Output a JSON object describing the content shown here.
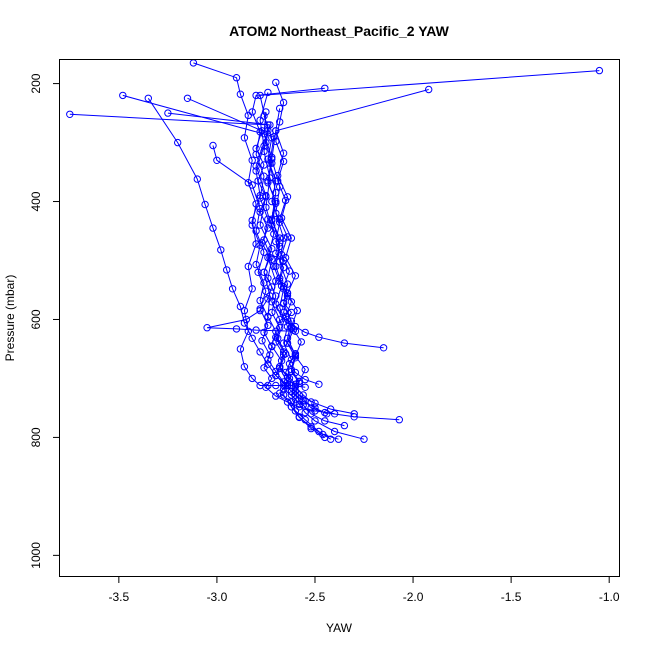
{
  "chart_data": {
    "type": "line",
    "title": "ATOM2 Northeast_Pacific_2 YAW",
    "xlabel": "YAW",
    "ylabel": "Pressure (mbar)",
    "xlim": [
      -3.8,
      -0.95
    ],
    "ylim": [
      1035,
      160
    ],
    "y_reversed": true,
    "x_ticks": [
      -3.5,
      -3.0,
      -2.5,
      -2.0,
      -1.5,
      -1.0
    ],
    "x_tick_labels": [
      "-3.5",
      "-3.0",
      "-2.5",
      "-2.0",
      "-1.5",
      "-1.0"
    ],
    "y_ticks": [
      200,
      400,
      600,
      800,
      1000
    ],
    "y_tick_labels": [
      "200",
      "400",
      "600",
      "800",
      "1000"
    ],
    "grid": false,
    "legend": "none",
    "marker": "open-circle",
    "color": "#0000ff",
    "series": [
      {
        "x": [
          -2.42,
          -2.48,
          -2.55,
          -2.6,
          -2.62,
          -2.68,
          -2.65,
          -2.7,
          -2.67,
          -2.72,
          -2.7,
          -2.74,
          -2.73,
          -2.76,
          -2.72,
          -2.78,
          -2.75,
          -2.8,
          -2.74,
          -2.78,
          -1.05
        ],
        "y": [
          803,
          790,
          770,
          755,
          740,
          725,
          712,
          695,
          670,
          645,
          620,
          595,
          560,
          520,
          480,
          440,
          390,
          340,
          280,
          220,
          178
        ]
      },
      {
        "x": [
          -2.45,
          -2.52,
          -2.58,
          -2.62,
          -2.6,
          -2.66,
          -2.63,
          -2.68,
          -2.66,
          -2.7,
          -2.68,
          -2.72,
          -2.7,
          -2.74,
          -2.71,
          -2.75,
          -2.73,
          -2.76,
          -2.74,
          -3.75
        ],
        "y": [
          800,
          785,
          765,
          748,
          735,
          718,
          700,
          680,
          655,
          630,
          600,
          570,
          535,
          495,
          455,
          410,
          360,
          315,
          270,
          252
        ]
      },
      {
        "x": [
          -2.25,
          -2.4,
          -2.5,
          -2.55,
          -2.58,
          -2.62,
          -2.6,
          -2.65,
          -2.62,
          -2.66,
          -2.64,
          -2.68,
          -2.66,
          -2.7,
          -2.68,
          -2.72,
          -2.7,
          -2.73,
          -2.71,
          -3.48
        ],
        "y": [
          803,
          790,
          772,
          758,
          744,
          728,
          710,
          690,
          668,
          640,
          612,
          580,
          548,
          510,
          470,
          430,
          385,
          335,
          290,
          220
        ]
      },
      {
        "x": [
          -2.07,
          -2.3,
          -2.45,
          -2.52,
          -2.55,
          -2.6,
          -2.58,
          -2.62,
          -2.6,
          -2.64,
          -2.62,
          -2.66,
          -2.64,
          -2.68,
          -2.66,
          -2.7,
          -2.68,
          -2.72,
          -2.7,
          -1.92
        ],
        "y": [
          770,
          765,
          758,
          750,
          738,
          722,
          705,
          685,
          660,
          632,
          603,
          573,
          540,
          502,
          462,
          420,
          375,
          328,
          280,
          210
        ]
      },
      {
        "x": [
          -2.15,
          -2.35,
          -2.48,
          -2.55,
          -2.6,
          -2.64,
          -2.62,
          -2.66,
          -2.64,
          -2.68,
          -2.66,
          -2.7,
          -2.68,
          -2.72,
          -2.7,
          -2.74,
          -2.72,
          -2.75,
          -2.73,
          -3.25
        ],
        "y": [
          648,
          640,
          630,
          622,
          612,
          600,
          588,
          572,
          555,
          535,
          512,
          488,
          462,
          432,
          400,
          368,
          335,
          300,
          270,
          250
        ]
      },
      {
        "x": [
          -2.6,
          -2.8,
          -2.9,
          -3.05,
          -2.85,
          -2.78,
          -2.74,
          -2.72,
          -2.76,
          -2.73,
          -2.77,
          -2.74,
          -2.78,
          -2.75,
          -2.79,
          -2.76,
          -2.8,
          -2.77,
          -3.15
        ],
        "y": [
          620,
          618,
          616,
          614,
          600,
          585,
          565,
          545,
          520,
          495,
          470,
          445,
          418,
          392,
          365,
          338,
          310,
          280,
          225
        ]
      },
      {
        "x": [
          -2.4,
          -2.5,
          -2.58,
          -2.64,
          -2.7,
          -2.75,
          -2.72,
          -2.76,
          -2.73,
          -2.77,
          -2.74,
          -2.78,
          -2.75,
          -2.79,
          -2.76,
          -2.8,
          -2.78,
          -2.82,
          -3.0,
          -3.02
        ],
        "y": [
          760,
          755,
          748,
          740,
          730,
          715,
          700,
          682,
          660,
          636,
          610,
          582,
          552,
          520,
          486,
          450,
          412,
          372,
          330,
          305
        ]
      },
      {
        "x": [
          -2.55,
          -2.62,
          -2.66,
          -2.7,
          -2.74,
          -2.78,
          -2.82,
          -2.86,
          -2.88,
          -2.84,
          -2.86,
          -2.82,
          -2.84,
          -2.8,
          -2.82,
          -2.78,
          -2.8,
          -2.76,
          -2.78,
          -2.74
        ],
        "y": [
          715,
          712,
          712,
          712,
          712,
          712,
          700,
          680,
          650,
          620,
          585,
          548,
          510,
          472,
          432,
          390,
          348,
          306,
          262,
          215
        ]
      },
      {
        "x": [
          -2.48,
          -2.55,
          -2.6,
          -2.63,
          -2.6,
          -2.64,
          -2.61,
          -2.65,
          -2.62,
          -2.66,
          -2.63,
          -2.67,
          -2.64,
          -2.68,
          -2.65,
          -2.69,
          -2.66,
          -2.7,
          -2.68,
          -2.66,
          -2.7
        ],
        "y": [
          710,
          702,
          690,
          675,
          658,
          640,
          618,
          595,
          570,
          545,
          518,
          490,
          460,
          430,
          398,
          365,
          332,
          298,
          265,
          232,
          198
        ]
      },
      {
        "x": [
          -2.35,
          -2.45,
          -2.52,
          -2.56,
          -2.6,
          -2.58,
          -2.62,
          -2.6,
          -2.64,
          -2.62,
          -2.66,
          -2.64,
          -2.68,
          -2.66,
          -2.7,
          -2.68,
          -2.72,
          -2.7,
          -2.74,
          -2.72,
          -2.76
        ],
        "y": [
          780,
          772,
          760,
          745,
          728,
          708,
          688,
          665,
          640,
          615,
          588,
          560,
          530,
          500,
          468,
          435,
          400,
          365,
          328,
          292,
          255
        ]
      },
      {
        "x": [
          -2.44,
          -2.5,
          -2.56,
          -2.62,
          -2.58,
          -2.55,
          -2.6,
          -2.57,
          -2.62,
          -2.59,
          -2.64,
          -2.6,
          -2.65,
          -2.62,
          -2.67,
          -2.64,
          -2.69,
          -2.66,
          -2.7,
          -2.68
        ],
        "y": [
          760,
          750,
          738,
          722,
          705,
          685,
          662,
          638,
          612,
          585,
          556,
          526,
          495,
          462,
          428,
          392,
          356,
          318,
          280,
          242
        ]
      },
      {
        "x": [
          -2.3,
          -2.42,
          -2.5,
          -2.58,
          -2.64,
          -2.7,
          -2.74,
          -2.78,
          -2.82,
          -2.86,
          -2.88,
          -2.92,
          -2.95,
          -2.98,
          -3.02,
          -3.06,
          -3.1,
          -3.2,
          -3.35
        ],
        "y": [
          760,
          752,
          742,
          728,
          712,
          695,
          676,
          655,
          632,
          606,
          578,
          548,
          516,
          482,
          445,
          405,
          362,
          300,
          225
        ]
      },
      {
        "x": [
          -2.52,
          -2.56,
          -2.6,
          -2.64,
          -2.68,
          -2.66,
          -2.7,
          -2.68,
          -2.72,
          -2.7,
          -2.74,
          -2.72,
          -2.76,
          -2.74,
          -2.78,
          -2.76,
          -2.8,
          -2.78,
          -2.82,
          -2.8,
          -2.45
        ],
        "y": [
          740,
          728,
          714,
          698,
          680,
          660,
          638,
          614,
          588,
          560,
          530,
          498,
          465,
          430,
          394,
          357,
          320,
          282,
          248,
          220,
          208
        ]
      },
      {
        "x": [
          -2.38,
          -2.46,
          -2.52,
          -2.58,
          -2.62,
          -2.66,
          -2.64,
          -2.68,
          -2.65,
          -2.69,
          -2.66,
          -2.7,
          -2.67,
          -2.71,
          -2.68,
          -2.72,
          -2.7,
          -2.74,
          -2.72,
          -2.76,
          -2.75
        ],
        "y": [
          803,
          795,
          782,
          766,
          748,
          728,
          706,
          683,
          658,
          632,
          604,
          574,
          543,
          510,
          476,
          440,
          403,
          365,
          325,
          285,
          248
        ]
      },
      {
        "x": [
          -2.58,
          -2.62,
          -2.66,
          -2.7,
          -2.74,
          -2.72,
          -2.76,
          -2.74,
          -2.78,
          -2.76,
          -2.8,
          -2.78,
          -2.82,
          -2.8,
          -2.84,
          -2.82,
          -2.86,
          -2.84,
          -2.88,
          -2.9,
          -3.12
        ],
        "y": [
          735,
          722,
          706,
          688,
          668,
          646,
          622,
          596,
          568,
          538,
          507,
          474,
          440,
          404,
          368,
          330,
          292,
          254,
          218,
          190,
          165
        ]
      }
    ]
  }
}
